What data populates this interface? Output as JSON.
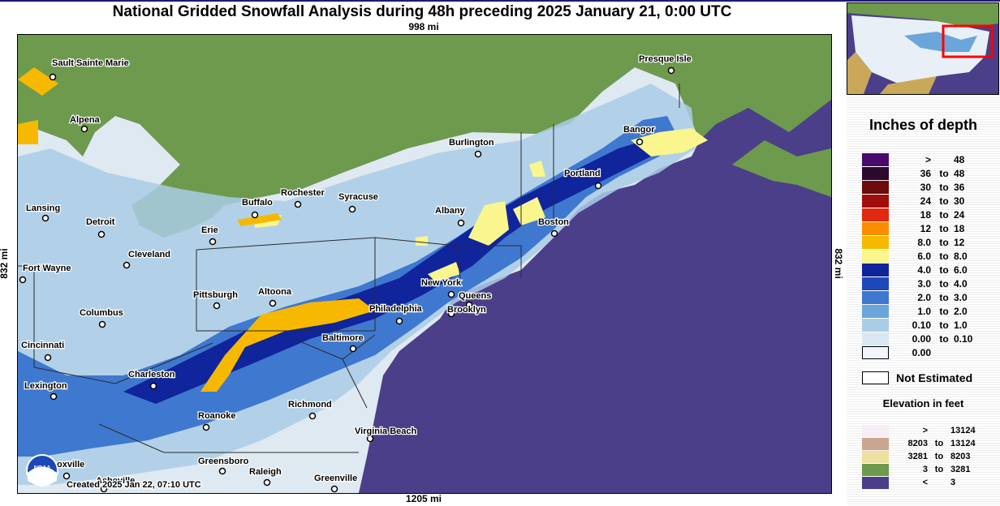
{
  "title": "National Gridded Snowfall Analysis during 48h preceding 2025 January 21, 0:00 UTC",
  "dimensions": {
    "top": "998 mi",
    "bottom": "1205 mi",
    "left": "832 mi",
    "right": "832 mi"
  },
  "created": "Created 2025 Jan 22, 07:10 UTC",
  "logo_text": "NOAA",
  "cities": [
    "Sault Sainte Marie",
    "Alpena",
    "Lansing",
    "Detroit",
    "Fort Wayne",
    "Cleveland",
    "Columbus",
    "Cincinnati",
    "Lexington",
    "Charleston",
    "Pittsburgh",
    "Altoona",
    "Erie",
    "Buffalo",
    "Rochester",
    "Syracuse",
    "Burlington",
    "Albany",
    "Boston",
    "Portland",
    "Bangor",
    "Presque Isle",
    "New York",
    "Queens",
    "Brooklyn",
    "Philadelphia",
    "Baltimore",
    "Richmond",
    "Roanoke",
    "Virginia Beach",
    "Greensboro",
    "Raleigh",
    "Greenville",
    "Knoxville",
    "Asheville"
  ],
  "city_display": {
    "Knoxville": "oxville",
    "Asheville": "Asheville"
  },
  "legend": {
    "title": "Inches of depth",
    "ranges": [
      {
        "lo": ">",
        "to": "",
        "hi": "48",
        "color": "#4a0a6b"
      },
      {
        "lo": "36",
        "to": "to",
        "hi": "48",
        "color": "#2b0a2e"
      },
      {
        "lo": "30",
        "to": "to",
        "hi": "36",
        "color": "#6e0b0b"
      },
      {
        "lo": "24",
        "to": "to",
        "hi": "30",
        "color": "#a10d0d"
      },
      {
        "lo": "18",
        "to": "to",
        "hi": "24",
        "color": "#e02910"
      },
      {
        "lo": "12",
        "to": "to",
        "hi": "18",
        "color": "#fb8c00"
      },
      {
        "lo": "8.0",
        "to": "to",
        "hi": "12",
        "color": "#f7b900"
      },
      {
        "lo": "6.0",
        "to": "to",
        "hi": "8.0",
        "color": "#fbf58e"
      },
      {
        "lo": "4.0",
        "to": "to",
        "hi": "6.0",
        "color": "#10249c"
      },
      {
        "lo": "3.0",
        "to": "to",
        "hi": "4.0",
        "color": "#1e48b8"
      },
      {
        "lo": "2.0",
        "to": "to",
        "hi": "3.0",
        "color": "#3f78cf"
      },
      {
        "lo": "1.0",
        "to": "to",
        "hi": "2.0",
        "color": "#6aa6da"
      },
      {
        "lo": "0.10",
        "to": "to",
        "hi": "1.0",
        "color": "#aacde6"
      },
      {
        "lo": "0.00",
        "to": "to",
        "hi": "0.10",
        "color": "#d9e8f3"
      },
      {
        "lo": "0.00",
        "to": "",
        "hi": "",
        "color": "#f2f5fb"
      }
    ],
    "not_estimated": "Not Estimated",
    "elevation_title": "Elevation in feet",
    "elevation": [
      {
        "lo": ">",
        "to": "",
        "hi": "13124",
        "color": "#f7eef5"
      },
      {
        "lo": "8203",
        "to": "to",
        "hi": "13124",
        "color": "#caa591"
      },
      {
        "lo": "3281",
        "to": "to",
        "hi": "8203",
        "color": "#eee0a0"
      },
      {
        "lo": "3",
        "to": "to",
        "hi": "3281",
        "color": "#6d9a4c"
      },
      {
        "lo": "<",
        "to": "",
        "hi": "3",
        "color": "#4b3f8a"
      }
    ]
  }
}
